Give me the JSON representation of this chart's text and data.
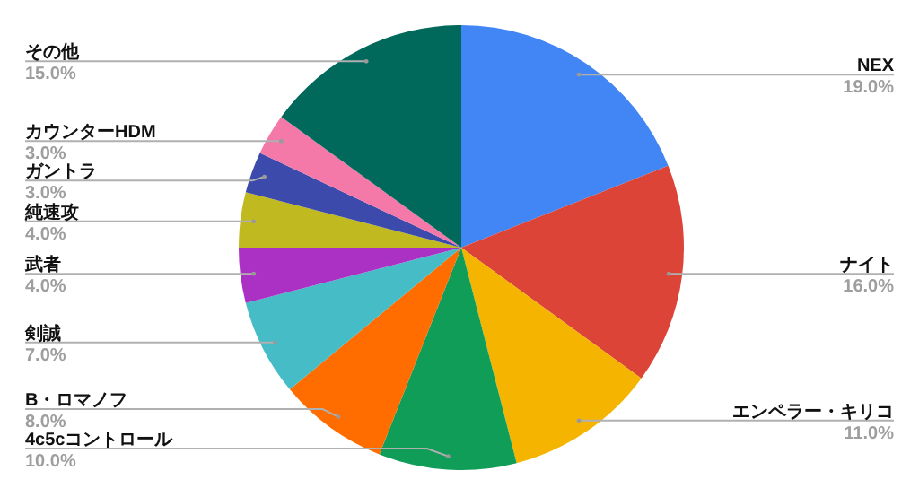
{
  "chart_data": {
    "type": "pie",
    "categories": [
      "NEX",
      "ナイト",
      "エンペラー・キリコ",
      "4c5cコントロール",
      "B・ロマノフ",
      "剣誠",
      "武者",
      "純速攻",
      "ガントラ",
      "カウンターHDM",
      "その他"
    ],
    "values": [
      19,
      16,
      11,
      10,
      8,
      7,
      4,
      4,
      3,
      3,
      15
    ],
    "colors": [
      "#4285f4",
      "#db4437",
      "#f4b400",
      "#0f9d58",
      "#ff6d01",
      "#46bdc6",
      "#ab30c4",
      "#c0ba20",
      "#3b4aab",
      "#f478a8",
      "#00695c"
    ],
    "value_labels": [
      "19.0%",
      "16.0%",
      "11.0%",
      "10.0%",
      "8.0%",
      "7.0%",
      "4.0%",
      "4.0%",
      "3.0%",
      "3.0%",
      "15.0%"
    ]
  }
}
